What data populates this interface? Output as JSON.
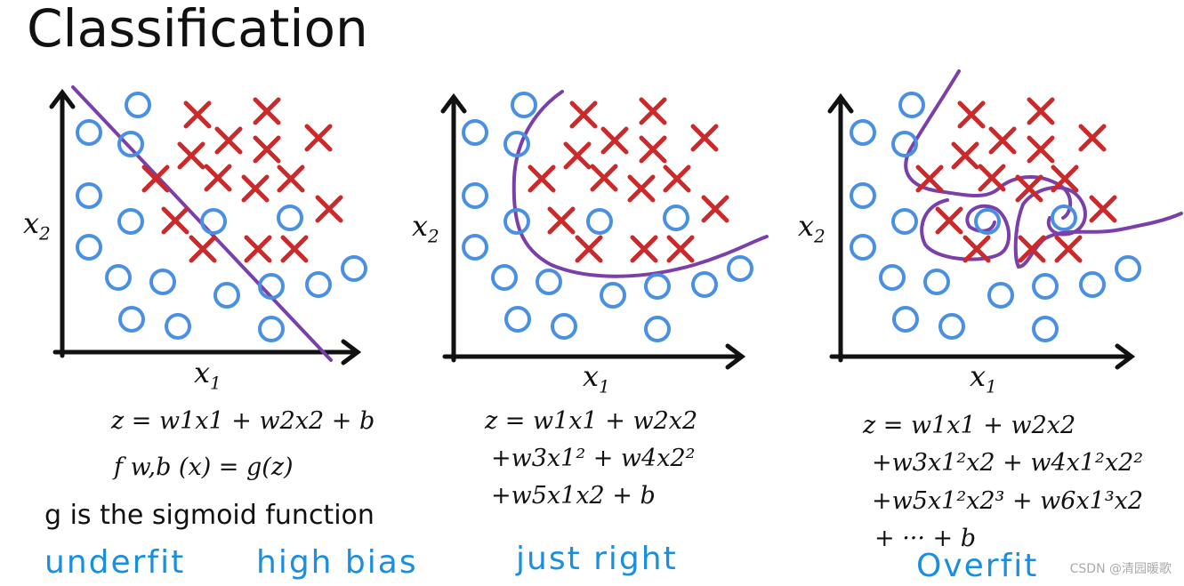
{
  "title": "Classification",
  "panels": [
    {
      "id": "underfit",
      "xlabel": "x1",
      "ylabel": "x2",
      "equations": [
        "z = w1x1 + w2x2 + b",
        "f w,b (x) = g(z)"
      ],
      "note": "g is the sigmoid function",
      "labels": [
        "underfit",
        "high bias"
      ]
    },
    {
      "id": "just-right",
      "xlabel": "x1",
      "ylabel": "x2",
      "equations": [
        "z = w1x1 + w2x2",
        "+w3x1² + w4x2²",
        "+w5x1x2 + b"
      ],
      "labels": [
        "just right"
      ]
    },
    {
      "id": "overfit",
      "xlabel": "x1",
      "ylabel": "x2",
      "equations": [
        "z = w1x1 + w2x2",
        "+w3x1²x2 + w4x1²x2²",
        "+w5x1²x2³ + w6x1³x2",
        "+ ··· + b"
      ],
      "labels": [
        "Overfit"
      ]
    }
  ],
  "colors": {
    "circle": "#4a90e2",
    "cross": "#cc2a2a",
    "boundary": "#7a3fa8",
    "handwriting": "#1a8fe0"
  },
  "watermark": "CSDN @清园暖歌"
}
